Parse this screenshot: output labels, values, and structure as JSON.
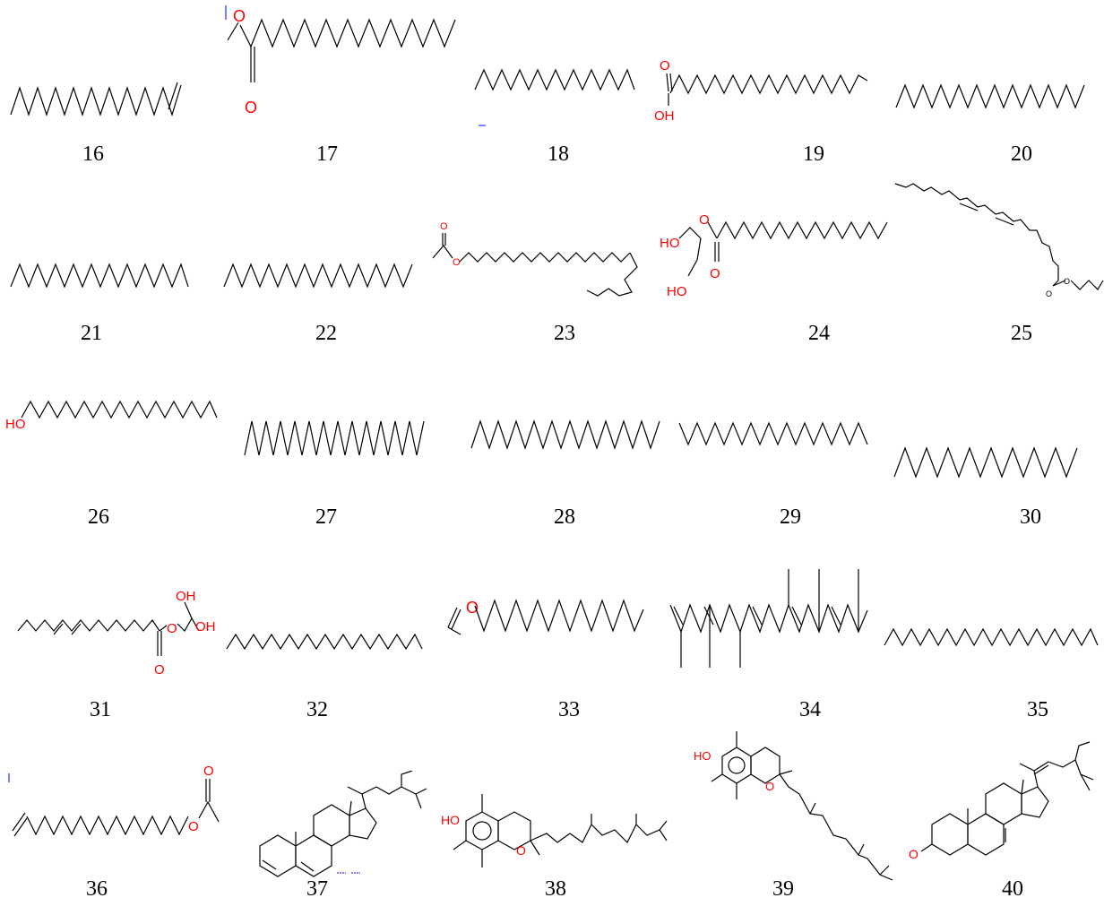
{
  "compounds": [
    {
      "number": "16",
      "heteroatoms": []
    },
    {
      "number": "17",
      "heteroatoms": [
        "O",
        "O"
      ]
    },
    {
      "number": "18",
      "heteroatoms": []
    },
    {
      "number": "19",
      "heteroatoms": [
        "O",
        "OH"
      ]
    },
    {
      "number": "20",
      "heteroatoms": []
    },
    {
      "number": "21",
      "heteroatoms": []
    },
    {
      "number": "22",
      "heteroatoms": []
    },
    {
      "number": "23",
      "heteroatoms": [
        "O",
        "O"
      ]
    },
    {
      "number": "24",
      "heteroatoms": [
        "HO",
        "O",
        "HO",
        "O"
      ]
    },
    {
      "number": "25",
      "heteroatoms": [
        "O",
        "O"
      ]
    },
    {
      "number": "26",
      "heteroatoms": [
        "HO"
      ]
    },
    {
      "number": "27",
      "heteroatoms": []
    },
    {
      "number": "28",
      "heteroatoms": []
    },
    {
      "number": "29",
      "heteroatoms": []
    },
    {
      "number": "30",
      "heteroatoms": []
    },
    {
      "number": "31",
      "heteroatoms": [
        "OH",
        "O",
        "OH",
        "O"
      ]
    },
    {
      "number": "32",
      "heteroatoms": []
    },
    {
      "number": "33",
      "heteroatoms": [
        "O"
      ]
    },
    {
      "number": "34",
      "heteroatoms": []
    },
    {
      "number": "35",
      "heteroatoms": []
    },
    {
      "number": "36",
      "heteroatoms": [
        "O",
        "O"
      ]
    },
    {
      "number": "37",
      "heteroatoms": []
    },
    {
      "number": "38",
      "heteroatoms": [
        "HO",
        "O"
      ]
    },
    {
      "number": "39",
      "heteroatoms": [
        "HO",
        "O"
      ]
    },
    {
      "number": "40",
      "heteroatoms": [
        "O"
      ]
    }
  ],
  "colors": {
    "bond": "#000000",
    "heteroatom": "#ff0000",
    "label": "#000000"
  }
}
